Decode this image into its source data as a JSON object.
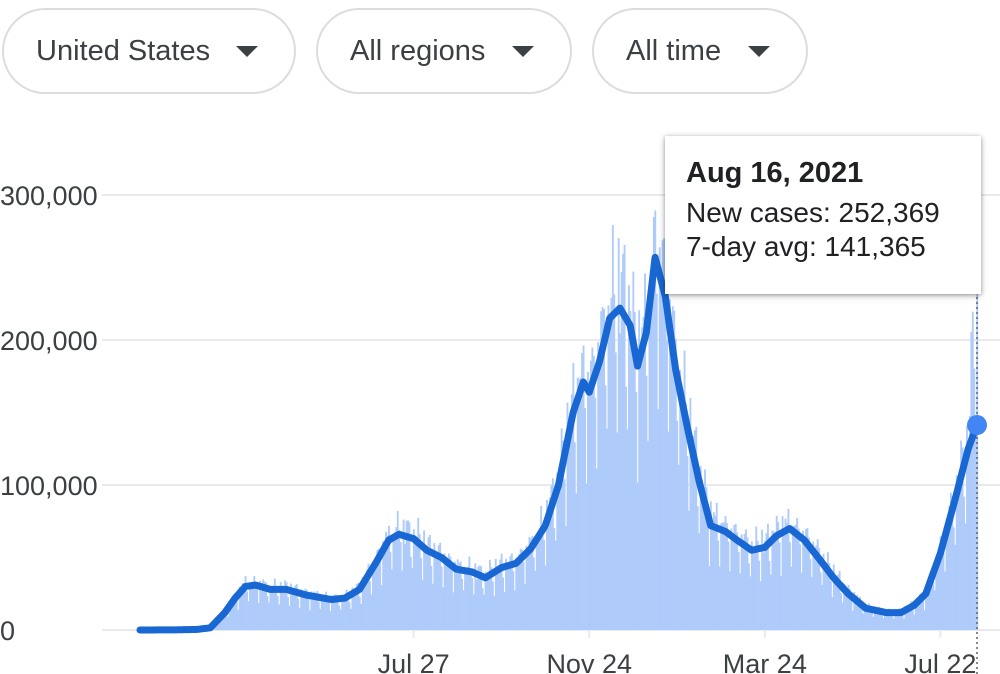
{
  "filters": {
    "country": "United States",
    "region": "All regions",
    "period": "All time"
  },
  "colors": {
    "bars": "#aecbfa",
    "line": "#1967d2",
    "dot": "#4285f4",
    "grid": "#e8eaed",
    "axis_text": "#3c4043"
  },
  "tooltip": {
    "date": "Aug 16, 2021",
    "new_cases_label": "New cases:",
    "new_cases_value": "252,369",
    "avg_label": "7-day avg:",
    "avg_value": "141,365"
  },
  "chart_data": {
    "type": "bar",
    "title": "",
    "xlabel": "",
    "ylabel": "",
    "x_range": [
      "2020-01-22",
      "2021-08-16"
    ],
    "ylim": [
      0,
      300000
    ],
    "y_ticks": [
      {
        "value": 0,
        "label": "0"
      },
      {
        "value": 100000,
        "label": "100,000"
      },
      {
        "value": 200000,
        "label": "200,000"
      },
      {
        "value": 300000,
        "label": "300,000"
      }
    ],
    "x_ticks": [
      {
        "date": "2020-07-27",
        "label": "Jul 27"
      },
      {
        "date": "2020-11-24",
        "label": "Nov 24"
      },
      {
        "date": "2021-03-24",
        "label": "Mar 24"
      },
      {
        "date": "2021-07-22",
        "label": "Jul 22"
      }
    ],
    "grid": true,
    "series": [
      {
        "type": "bar",
        "points": [
          [
            "2020-01-22",
            0
          ],
          [
            "2020-02-15",
            100
          ],
          [
            "2020-03-01",
            500
          ],
          [
            "2020-03-10",
            1500
          ],
          [
            "2020-03-20",
            12000
          ],
          [
            "2020-03-27",
            22000
          ],
          [
            "2020-04-03",
            31000
          ],
          [
            "2020-04-10",
            31000
          ],
          [
            "2020-04-20",
            28000
          ],
          [
            "2020-05-01",
            28000
          ],
          [
            "2020-05-15",
            24000
          ],
          [
            "2020-06-01",
            21000
          ],
          [
            "2020-06-10",
            21000
          ],
          [
            "2020-06-20",
            28000
          ],
          [
            "2020-07-01",
            46000
          ],
          [
            "2020-07-10",
            62000
          ],
          [
            "2020-07-17",
            67000
          ],
          [
            "2020-07-27",
            63000
          ],
          [
            "2020-08-05",
            55000
          ],
          [
            "2020-08-15",
            50000
          ],
          [
            "2020-08-25",
            42000
          ],
          [
            "2020-09-05",
            40000
          ],
          [
            "2020-09-14",
            36000
          ],
          [
            "2020-09-25",
            43000
          ],
          [
            "2020-10-05",
            46000
          ],
          [
            "2020-10-15",
            56000
          ],
          [
            "2020-10-25",
            72000
          ],
          [
            "2020-11-03",
            100000
          ],
          [
            "2020-11-13",
            150000
          ],
          [
            "2020-11-20",
            171000
          ],
          [
            "2020-11-24",
            164000
          ],
          [
            "2020-12-01",
            185000
          ],
          [
            "2020-12-08",
            215000
          ],
          [
            "2020-12-15",
            225000
          ],
          [
            "2020-12-22",
            210000
          ],
          [
            "2020-12-27",
            180000
          ],
          [
            "2021-01-02",
            205000
          ],
          [
            "2021-01-08",
            258000
          ],
          [
            "2021-01-15",
            230000
          ],
          [
            "2021-01-22",
            180000
          ],
          [
            "2021-01-30",
            140000
          ],
          [
            "2021-02-07",
            105000
          ],
          [
            "2021-02-15",
            75000
          ],
          [
            "2021-02-25",
            68000
          ],
          [
            "2021-03-05",
            62000
          ],
          [
            "2021-03-15",
            55000
          ],
          [
            "2021-03-24",
            57000
          ],
          [
            "2021-04-01",
            65000
          ],
          [
            "2021-04-10",
            70000
          ],
          [
            "2021-04-20",
            62000
          ],
          [
            "2021-05-01",
            49000
          ],
          [
            "2021-05-10",
            37000
          ],
          [
            "2021-05-20",
            26000
          ],
          [
            "2021-06-01",
            16000
          ],
          [
            "2021-06-15",
            12000
          ],
          [
            "2021-06-25",
            12000
          ],
          [
            "2021-07-04",
            17000
          ],
          [
            "2021-07-12",
            25000
          ],
          [
            "2021-07-22",
            53000
          ],
          [
            "2021-08-01",
            90000
          ],
          [
            "2021-08-10",
            125000
          ],
          [
            "2021-08-16",
            252369
          ]
        ]
      },
      {
        "type": "line",
        "points": [
          [
            "2020-01-22",
            0
          ],
          [
            "2020-02-15",
            100
          ],
          [
            "2020-03-01",
            400
          ],
          [
            "2020-03-10",
            1500
          ],
          [
            "2020-03-20",
            12000
          ],
          [
            "2020-03-27",
            22000
          ],
          [
            "2020-04-03",
            30000
          ],
          [
            "2020-04-10",
            31000
          ],
          [
            "2020-04-20",
            28000
          ],
          [
            "2020-05-01",
            28000
          ],
          [
            "2020-05-15",
            24000
          ],
          [
            "2020-06-01",
            21000
          ],
          [
            "2020-06-10",
            22000
          ],
          [
            "2020-06-20",
            28000
          ],
          [
            "2020-07-01",
            46000
          ],
          [
            "2020-07-10",
            62000
          ],
          [
            "2020-07-17",
            66000
          ],
          [
            "2020-07-27",
            63000
          ],
          [
            "2020-08-05",
            55000
          ],
          [
            "2020-08-15",
            50000
          ],
          [
            "2020-08-25",
            42000
          ],
          [
            "2020-09-05",
            40000
          ],
          [
            "2020-09-14",
            36000
          ],
          [
            "2020-09-25",
            43000
          ],
          [
            "2020-10-05",
            46000
          ],
          [
            "2020-10-15",
            56000
          ],
          [
            "2020-10-25",
            72000
          ],
          [
            "2020-11-03",
            100000
          ],
          [
            "2020-11-13",
            150000
          ],
          [
            "2020-11-20",
            171000
          ],
          [
            "2020-11-24",
            164000
          ],
          [
            "2020-12-01",
            185000
          ],
          [
            "2020-12-08",
            215000
          ],
          [
            "2020-12-15",
            222000
          ],
          [
            "2020-12-22",
            210000
          ],
          [
            "2020-12-27",
            182000
          ],
          [
            "2021-01-02",
            205000
          ],
          [
            "2021-01-08",
            257000
          ],
          [
            "2021-01-15",
            230000
          ],
          [
            "2021-01-22",
            180000
          ],
          [
            "2021-01-30",
            140000
          ],
          [
            "2021-02-07",
            103000
          ],
          [
            "2021-02-15",
            72000
          ],
          [
            "2021-02-25",
            68000
          ],
          [
            "2021-03-05",
            62000
          ],
          [
            "2021-03-15",
            55000
          ],
          [
            "2021-03-24",
            57000
          ],
          [
            "2021-04-01",
            65000
          ],
          [
            "2021-04-10",
            70000
          ],
          [
            "2021-04-20",
            62000
          ],
          [
            "2021-05-01",
            48000
          ],
          [
            "2021-05-10",
            36000
          ],
          [
            "2021-05-20",
            25000
          ],
          [
            "2021-06-01",
            15000
          ],
          [
            "2021-06-15",
            12000
          ],
          [
            "2021-06-25",
            12000
          ],
          [
            "2021-07-04",
            17000
          ],
          [
            "2021-07-12",
            25000
          ],
          [
            "2021-07-22",
            53000
          ],
          [
            "2021-08-01",
            90000
          ],
          [
            "2021-08-10",
            125000
          ],
          [
            "2021-08-16",
            141365
          ]
        ]
      }
    ],
    "highlight": {
      "date": "2021-08-16",
      "value": 141365
    }
  }
}
